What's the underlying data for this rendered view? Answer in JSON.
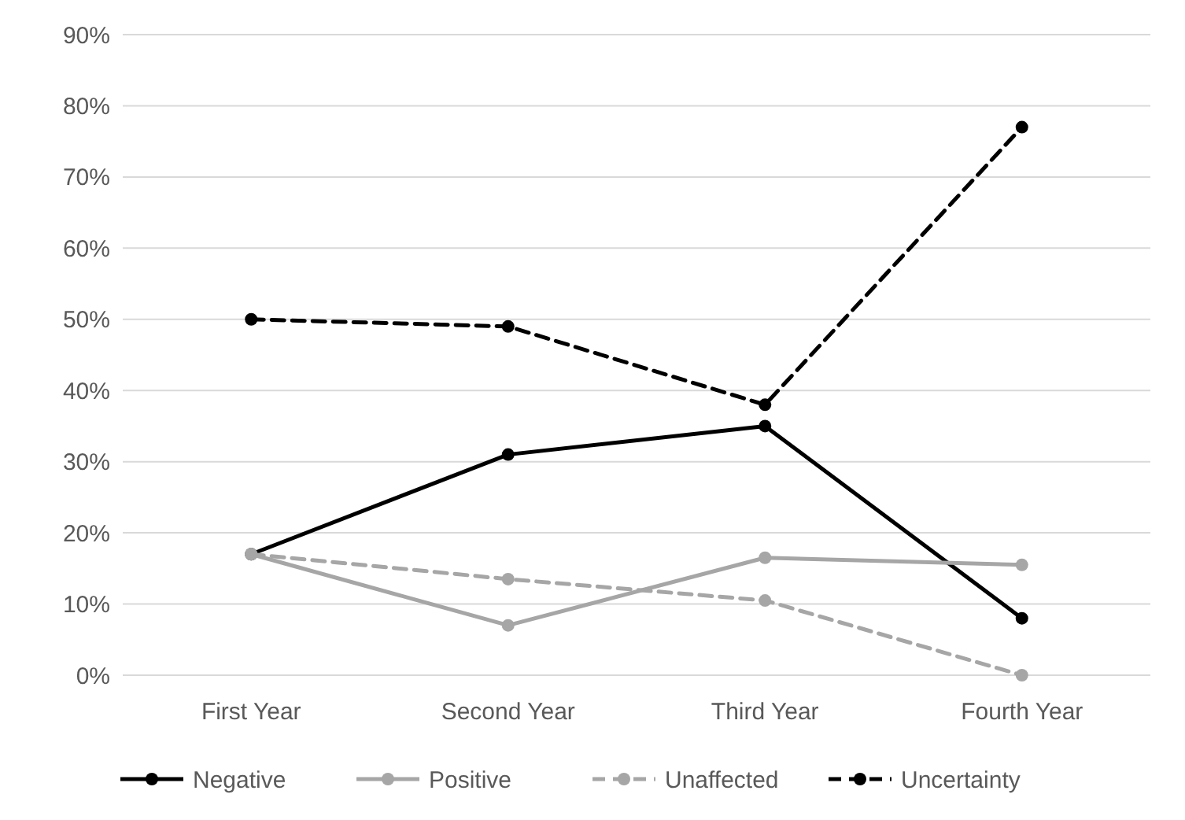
{
  "chart_data": {
    "type": "line",
    "categories": [
      "First Year",
      "Second Year",
      "Third Year",
      "Fourth Year"
    ],
    "series": [
      {
        "name": "Negative",
        "color": "#000000",
        "line_style": "solid",
        "values": [
          17,
          31,
          35,
          8
        ]
      },
      {
        "name": "Positive",
        "color": "#a6a6a6",
        "line_style": "solid",
        "values": [
          17,
          7,
          16.5,
          15.5
        ]
      },
      {
        "name": "Unaffected",
        "color": "#a6a6a6",
        "line_style": "dashed",
        "values": [
          17,
          13.5,
          10.5,
          0
        ]
      },
      {
        "name": "Uncertainty",
        "color": "#000000",
        "line_style": "dashed",
        "values": [
          50,
          49,
          38,
          77
        ]
      }
    ],
    "ylim": [
      0,
      90
    ],
    "yticks": [
      {
        "value": 0,
        "label": "0%"
      },
      {
        "value": 10,
        "label": "10%"
      },
      {
        "value": 20,
        "label": "20%"
      },
      {
        "value": 30,
        "label": "30%"
      },
      {
        "value": 40,
        "label": "40%"
      },
      {
        "value": 50,
        "label": "50%"
      },
      {
        "value": 60,
        "label": "60%"
      },
      {
        "value": 70,
        "label": "70%"
      },
      {
        "value": 80,
        "label": "80%"
      },
      {
        "value": 90,
        "label": "90%"
      }
    ],
    "grid": "y",
    "legend": "bottom",
    "marker": "circle"
  }
}
